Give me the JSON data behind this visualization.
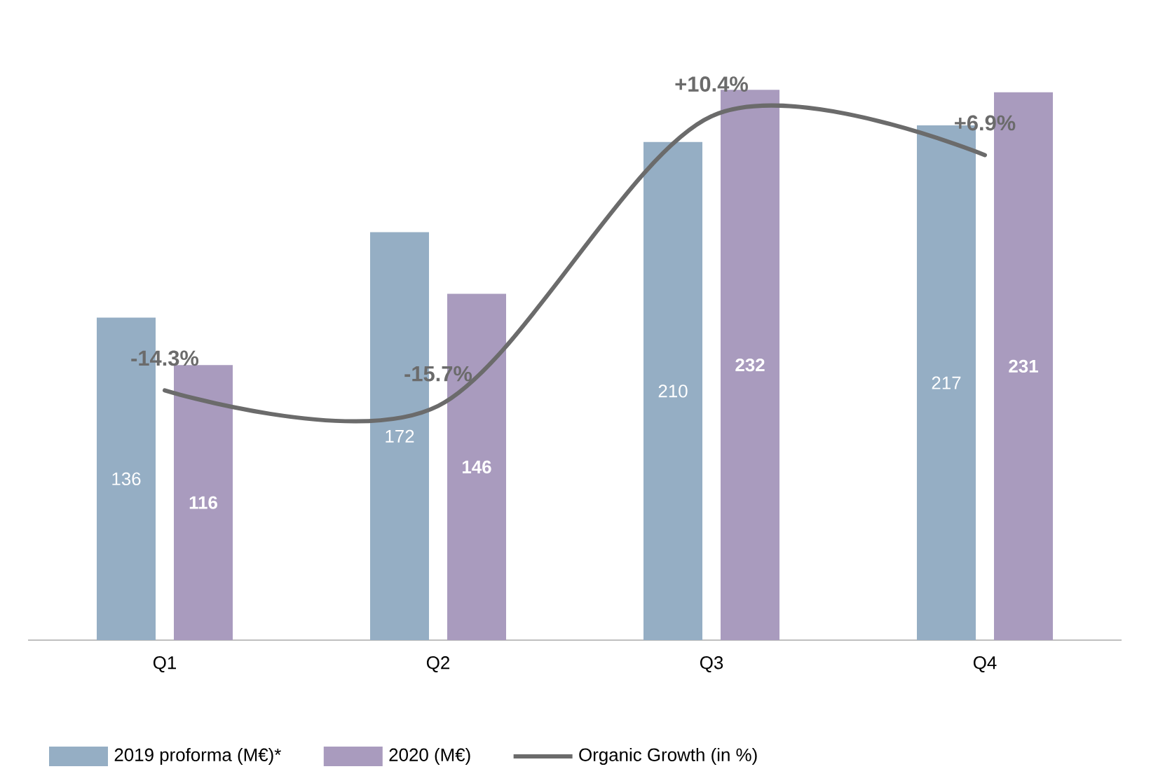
{
  "chart_data": {
    "type": "bar",
    "categories": [
      "Q1",
      "Q2",
      "Q3",
      "Q4"
    ],
    "tick_labels": "x",
    "legend": "bottom",
    "series": [
      {
        "name": "2019 proforma (M€)*",
        "color": "#95aec4",
        "values": [
          136,
          172,
          210,
          217
        ],
        "value_labels": [
          "136",
          "172",
          "210",
          "217"
        ]
      },
      {
        "name": "2020 (M€)",
        "color": "#a99bbe",
        "values": [
          116,
          146,
          232,
          231
        ],
        "value_labels": [
          "116",
          "146",
          "232",
          "231"
        ]
      },
      {
        "name": "Organic Growth (in %)",
        "type": "line",
        "axis": "y2",
        "color": "#6b6b6b",
        "values": [
          -14.3,
          -15.7,
          10.4,
          6.9
        ],
        "value_labels": [
          "-14.3%",
          "-15.7%",
          "+10.4%",
          "+6.9%"
        ]
      }
    ]
  }
}
